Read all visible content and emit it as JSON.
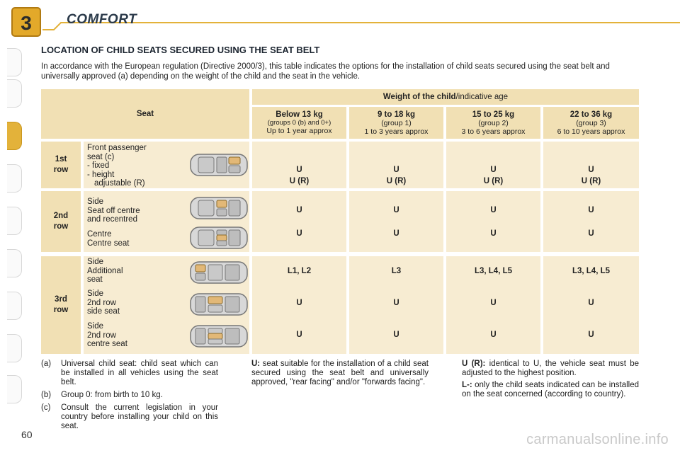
{
  "header": {
    "chapter": "3",
    "title": "COMFORT"
  },
  "page_number": "60",
  "section_title": "LOCATION OF CHILD SEATS SECURED USING THE SEAT BELT",
  "intro": "In accordance with the European regulation (Directive 2000/3), this table indicates the options for the installation of child seats secured using the seat belt and universally approved (a) depending on the weight of the child and the seat in the vehicle.",
  "table": {
    "seat_header": "Seat",
    "weight_header_bold": "Weight of the child",
    "weight_header_rest": "/indicative age",
    "groups": [
      {
        "weight": "Below 13 kg",
        "group": "(groups 0 (b) and 0+)",
        "age": "Up to 1 year approx"
      },
      {
        "weight": "9 to 18 kg",
        "group": "(group 1)",
        "age": "1 to 3 years approx"
      },
      {
        "weight": "15 to 25 kg",
        "group": "(group 2)",
        "age": "3 to 6 years approx"
      },
      {
        "weight": "22 to 36 kg",
        "group": "(group 3)",
        "age": "6 to 10 years approx"
      }
    ],
    "rows": [
      {
        "label_1": "1st",
        "label_2": "row",
        "seats": [
          {
            "lines": [
              "Front passenger",
              "seat (c)",
              "- fixed",
              "- height",
              "   adjustable (R)"
            ],
            "values": [
              "U\nU (R)",
              "U\nU (R)",
              "U\nU (R)",
              "U\nU (R)"
            ]
          }
        ]
      },
      {
        "label_1": "2nd",
        "label_2": "row",
        "seats": [
          {
            "lines": [
              "Side",
              "Seat off centre",
              "and recentred"
            ],
            "values": [
              "U",
              "U",
              "U",
              "U"
            ]
          },
          {
            "lines": [
              "Centre",
              "Centre seat"
            ],
            "values": [
              "U",
              "U",
              "U",
              "U"
            ]
          }
        ]
      },
      {
        "label_1": "3rd",
        "label_2": "row",
        "seats": [
          {
            "lines": [
              "Side",
              "Additional",
              "seat"
            ],
            "values": [
              "L1, L2",
              "L3",
              "L3, L4, L5",
              "L3, L4, L5"
            ]
          },
          {
            "lines": [
              "Side",
              "2nd row",
              "side seat"
            ],
            "values": [
              "U",
              "U",
              "U",
              "U"
            ]
          },
          {
            "lines": [
              "Side",
              "2nd row",
              "centre seat"
            ],
            "values": [
              "U",
              "U",
              "U",
              "U"
            ]
          }
        ]
      }
    ]
  },
  "footnotes": {
    "left": [
      {
        "key": "(a)",
        "text": "Universal child seat: child seat which can be installed in all vehicles using the seat belt."
      },
      {
        "key": "(b)",
        "text": "Group 0: from birth to 10 kg."
      },
      {
        "key": "(c)",
        "text": "Consult the current legislation in your country before installing your child on this seat."
      }
    ],
    "middle": {
      "term": "U:",
      "text": " seat suitable for the installation of a child seat secured using the seat belt and universally approved, \"rear facing\" and/or \"forwards facing\"."
    },
    "right": [
      {
        "term": "U (R):",
        "text": " identical to U, the vehicle seat must be adjusted to the highest position."
      },
      {
        "term": "L-:",
        "text": " only the child seats indicated can be installed on the seat concerned (according to country)."
      }
    ]
  },
  "watermark": "carmanualsonline.info",
  "colors": {
    "cell": "#f7ecd2",
    "cell_dark": "#f1e0b4",
    "accent": "#e3b23a"
  }
}
